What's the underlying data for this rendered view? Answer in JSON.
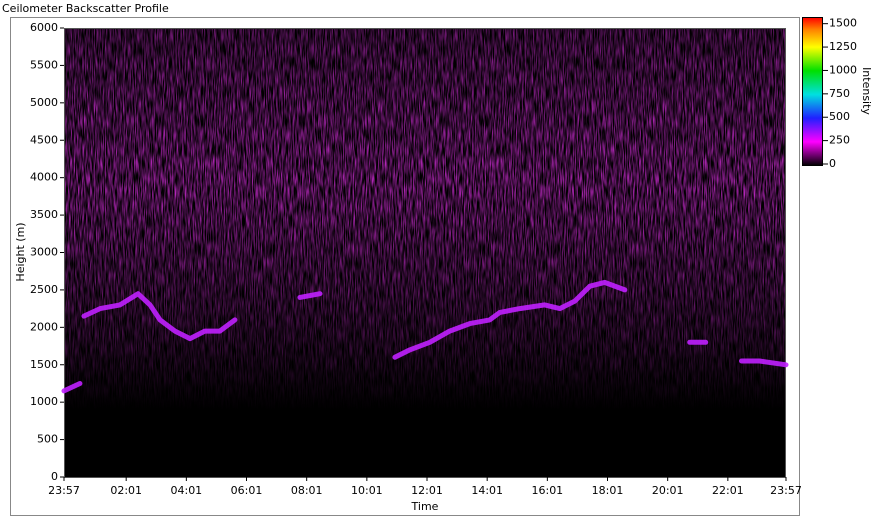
{
  "window_title": "Ceilometer Backscatter Profile",
  "chart_data": {
    "type": "line",
    "xlabel": "Time",
    "ylabel": "Height (m)",
    "xlim": [
      0,
      24
    ],
    "xticks": [
      {
        "value": 0,
        "label": "23:57"
      },
      {
        "value": 2.067,
        "label": "02:01"
      },
      {
        "value": 4.067,
        "label": "04:01"
      },
      {
        "value": 6.067,
        "label": "06:01"
      },
      {
        "value": 8.067,
        "label": "08:01"
      },
      {
        "value": 10.067,
        "label": "10:01"
      },
      {
        "value": 12.067,
        "label": "12:01"
      },
      {
        "value": 14.067,
        "label": "14:01"
      },
      {
        "value": 16.067,
        "label": "16:01"
      },
      {
        "value": 18.067,
        "label": "18:01"
      },
      {
        "value": 20.067,
        "label": "20:01"
      },
      {
        "value": 22.067,
        "label": "22:01"
      },
      {
        "value": 24,
        "label": "23:57"
      }
    ],
    "ylim": [
      0,
      6000
    ],
    "yticks": [
      0,
      500,
      1000,
      1500,
      2000,
      2500,
      3000,
      3500,
      4000,
      4500,
      5000,
      5500,
      6000
    ],
    "series": [
      {
        "color": "#c020ff",
        "x": [
          0,
          0.53,
          0.6,
          0.66,
          1.2,
          1.86,
          2.46,
          2.86,
          3.19,
          3.69,
          4.19,
          4.68,
          5.18,
          5.68,
          6.5,
          7.84,
          8.51,
          10.0,
          11.0,
          11.5,
          12.16,
          12.82,
          13.49,
          14.15,
          14.49,
          15.15,
          15.98,
          16.48,
          16.98,
          17.48,
          17.97,
          18.64,
          19.5,
          20.8,
          21.33,
          22.0,
          22.52,
          23.12,
          24
        ],
        "values": [
          1150,
          1250,
          null,
          2150,
          2250,
          2300,
          2450,
          2300,
          2100,
          1950,
          1850,
          1950,
          1950,
          2100,
          null,
          2400,
          2450,
          null,
          1600,
          1700,
          1800,
          1950,
          2050,
          2100,
          2200,
          2250,
          2300,
          2250,
          2350,
          2550,
          2600,
          2500,
          null,
          1800,
          1800,
          null,
          1550,
          1550,
          1500
        ]
      }
    ],
    "colorbar": {
      "label": "Intensity",
      "lim": [
        0,
        1550
      ],
      "ticks": [
        0,
        250,
        500,
        750,
        1000,
        1250,
        1500
      ]
    }
  }
}
